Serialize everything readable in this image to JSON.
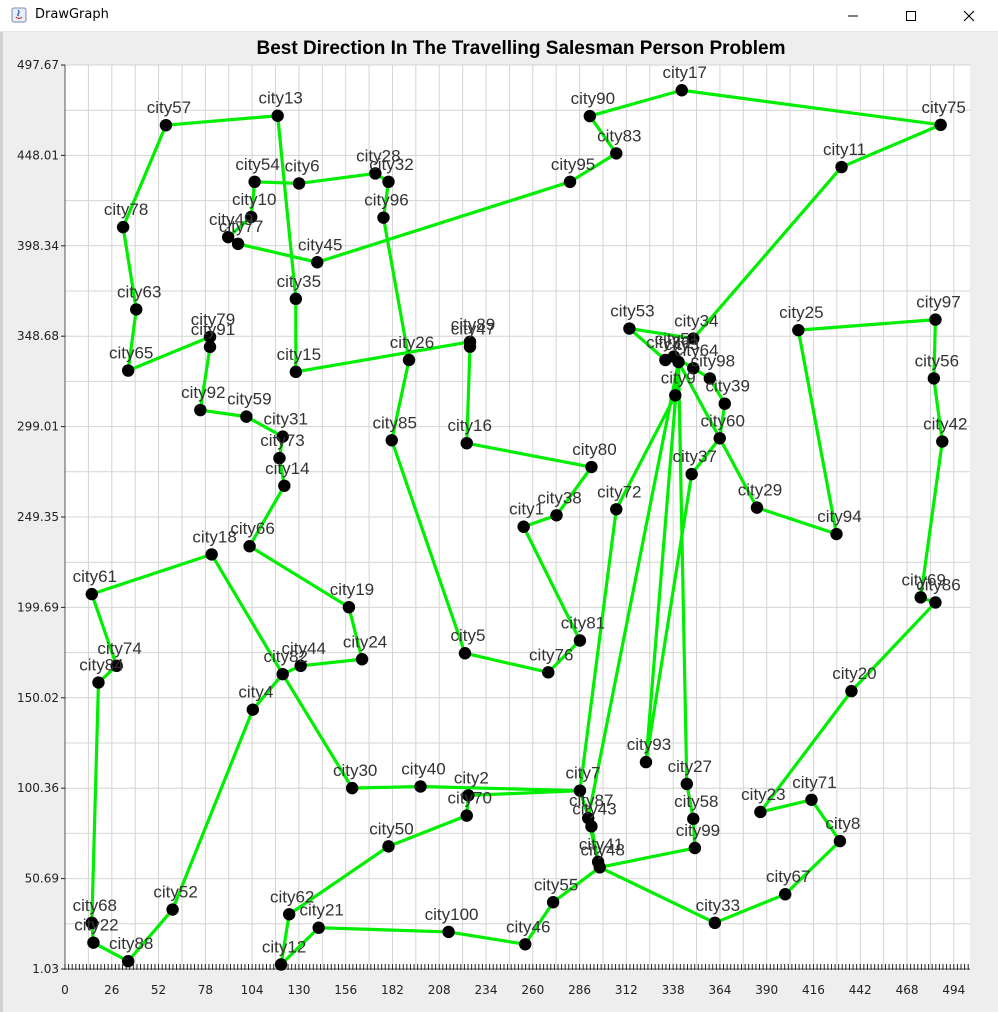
{
  "window": {
    "title": "DrawGraph",
    "icons": [
      "java-app-icon",
      "minimize-icon",
      "maximize-icon",
      "close-icon"
    ]
  },
  "colors": {
    "route": "#00ee00",
    "node": "#000000",
    "grid": "#d4d4d4",
    "label": "#333333"
  },
  "chart_data": {
    "type": "line",
    "title": "Best Direction In The Travelling Salesman Person Problem",
    "xlabel": "",
    "ylabel": "",
    "xlim": [
      0,
      503
    ],
    "ylim": [
      1.03,
      497.67
    ],
    "grid": true,
    "legend": "none",
    "x_ticks": [
      0,
      26,
      52,
      78,
      104,
      130,
      156,
      182,
      208,
      234,
      260,
      286,
      312,
      338,
      364,
      390,
      416,
      442,
      468,
      494
    ],
    "y_ticks": [
      "1.03",
      "50.69",
      "100.36",
      "150.02",
      "199.69",
      "249.35",
      "299.01",
      "348.68",
      "398.34",
      "448.01",
      "497.67"
    ],
    "cities": {
      "city1": [
        254.9,
        244.0
      ],
      "city2": [
        224.2,
        96.4
      ],
      "city3": [
        341.0,
        334.5
      ],
      "city4": [
        104.4,
        143.5
      ],
      "city5": [
        222.3,
        174.5
      ],
      "city6": [
        130.1,
        432.6
      ],
      "city7": [
        286.2,
        99.0
      ],
      "city8": [
        430.7,
        71.3
      ],
      "city9": [
        339.2,
        316.2
      ],
      "city10": [
        103.5,
        414.2
      ],
      "city11": [
        431.6,
        441.6
      ],
      "city12": [
        120.1,
        3.5
      ],
      "city13": [
        118.2,
        469.8
      ],
      "city14": [
        121.9,
        266.5
      ],
      "city15": [
        128.3,
        329.1
      ],
      "city16": [
        223.3,
        289.9
      ],
      "city17": [
        342.8,
        483.8
      ],
      "city18": [
        81.5,
        228.8
      ],
      "city19": [
        157.8,
        199.8
      ],
      "city20": [
        437.1,
        153.7
      ],
      "city21": [
        141.0,
        23.7
      ],
      "city22": [
        15.8,
        15.5
      ],
      "city23": [
        386.5,
        87.3
      ],
      "city24": [
        165.1,
        171.2
      ],
      "city25": [
        407.6,
        352.0
      ],
      "city26": [
        191.2,
        335.6
      ],
      "city27": [
        345.6,
        102.7
      ],
      "city28": [
        172.5,
        438.1
      ],
      "city29": [
        384.6,
        254.5
      ],
      "city30": [
        159.6,
        100.4
      ],
      "city31": [
        121.0,
        293.5
      ],
      "city32": [
        179.8,
        433.5
      ],
      "city33": [
        361.2,
        26.4
      ],
      "city34": [
        349.2,
        347.4
      ],
      "city35": [
        128.3,
        369.2
      ],
      "city36": [
        333.7,
        335.6
      ],
      "city37": [
        348.3,
        272.9
      ],
      "city38": [
        273.2,
        250.3
      ],
      "city39": [
        366.7,
        311.6
      ],
      "city40": [
        197.6,
        101.3
      ],
      "city41": [
        296.3,
        59.9
      ],
      "city42": [
        487.6,
        290.8
      ],
      "city43": [
        292.6,
        79.4
      ],
      "city44": [
        131.0,
        167.6
      ],
      "city45": [
        140.2,
        389.3
      ],
      "city46": [
        255.8,
        14.6
      ],
      "city47": [
        225.1,
        342.9
      ],
      "city48": [
        297.2,
        56.9
      ],
      "city49": [
        90.7,
        403.1
      ],
      "city50": [
        179.8,
        68.4
      ],
      "city51": [
        338.4,
        337.5
      ],
      "city52": [
        59.8,
        33.7
      ],
      "city53": [
        313.7,
        352.9
      ],
      "city54": [
        105.4,
        433.5
      ],
      "city55": [
        271.3,
        37.7
      ],
      "city56": [
        482.9,
        325.5
      ],
      "city57": [
        56.1,
        464.6
      ],
      "city58": [
        349.2,
        83.5
      ],
      "city59": [
        100.8,
        304.5
      ],
      "city60": [
        363.9,
        292.6
      ],
      "city61": [
        14.9,
        207.0
      ],
      "city62": [
        124.6,
        31.1
      ],
      "city63": [
        39.6,
        363.4
      ],
      "city64": [
        349.2,
        331.1
      ],
      "city65": [
        35.1,
        329.8
      ],
      "city66": [
        102.6,
        233.3
      ],
      "city67": [
        400.3,
        42.1
      ],
      "city68": [
        14.9,
        26.4
      ],
      "city69": [
        475.6,
        205.2
      ],
      "city70": [
        223.3,
        85.3
      ],
      "city71": [
        414.9,
        94.0
      ],
      "city72": [
        306.4,
        253.6
      ],
      "city73": [
        119.2,
        281.7
      ],
      "city74": [
        28.7,
        167.6
      ],
      "city75": [
        486.7,
        464.8
      ],
      "city76": [
        268.6,
        164.0
      ],
      "city77": [
        96.2,
        399.4
      ],
      "city78": [
        32.3,
        408.6
      ],
      "city79": [
        80.6,
        348.3
      ],
      "city80": [
        292.6,
        276.8
      ],
      "city81": [
        286.2,
        181.5
      ],
      "city82": [
        121.0,
        163.0
      ],
      "city83": [
        306.4,
        449.1
      ],
      "city84": [
        18.6,
        158.4
      ],
      "city85": [
        181.6,
        291.5
      ],
      "city86": [
        483.8,
        202.4
      ],
      "city87": [
        290.8,
        83.9
      ],
      "city88": [
        35.1,
        5.3
      ],
      "city89": [
        225.1,
        345.6
      ],
      "city90": [
        291.7,
        469.6
      ],
      "city91": [
        80.6,
        342.8
      ],
      "city92": [
        75.2,
        308.1
      ],
      "city93": [
        322.9,
        114.7
      ],
      "city94": [
        428.8,
        240.0
      ],
      "city95": [
        280.7,
        433.5
      ],
      "city96": [
        177.0,
        413.8
      ],
      "city97": [
        483.8,
        357.8
      ],
      "city98": [
        358.4,
        325.5
      ],
      "city99": [
        350.1,
        67.5
      ],
      "city100": [
        213.2,
        21.4
      ]
    },
    "route": [
      "city57",
      "city13",
      "city35",
      "city15",
      "city89",
      "city47",
      "city16",
      "city80",
      "city38",
      "city1",
      "city81",
      "city76",
      "city5",
      "city85",
      "city26",
      "city96",
      "city32",
      "city28",
      "city6",
      "city54",
      "city10",
      "city49",
      "city77",
      "city45",
      "city95",
      "city83",
      "city90",
      "city17",
      "city75",
      "city11",
      "city34",
      "city53",
      "city36",
      "city51",
      "city64",
      "city98",
      "city39",
      "city60",
      "city29",
      "city94",
      "city25",
      "city97",
      "city56",
      "city42",
      "city69",
      "city86",
      "city20",
      "city23",
      "city71",
      "city8",
      "city67",
      "city33",
      "city48",
      "city41",
      "city87",
      "city3",
      "city93",
      "city37",
      "city60",
      "city3",
      "city9",
      "city72",
      "city7",
      "city40",
      "city30",
      "city82",
      "city44",
      "city24",
      "city19",
      "city66",
      "city14",
      "city73",
      "city31",
      "city59",
      "city92",
      "city91",
      "city79",
      "city65",
      "city63",
      "city78",
      "city57"
    ],
    "extra_edges": [
      [
        "city3",
        "city27"
      ],
      [
        "city27",
        "city58"
      ],
      [
        "city58",
        "city99"
      ],
      [
        "city99",
        "city48"
      ],
      [
        "city48",
        "city55"
      ],
      [
        "city55",
        "city46"
      ],
      [
        "city46",
        "city100"
      ],
      [
        "city100",
        "city21"
      ],
      [
        "city21",
        "city12"
      ],
      [
        "city12",
        "city62"
      ],
      [
        "city62",
        "city50"
      ],
      [
        "city50",
        "city70"
      ],
      [
        "city70",
        "city2"
      ],
      [
        "city2",
        "city7"
      ],
      [
        "city7",
        "city43"
      ],
      [
        "city43",
        "city41"
      ],
      [
        "city82",
        "city18"
      ],
      [
        "city18",
        "city61"
      ],
      [
        "city61",
        "city74"
      ],
      [
        "city74",
        "city84"
      ],
      [
        "city84",
        "city68"
      ],
      [
        "city68",
        "city22"
      ],
      [
        "city22",
        "city88"
      ],
      [
        "city88",
        "city52"
      ],
      [
        "city52",
        "city4"
      ],
      [
        "city4",
        "city82"
      ]
    ]
  }
}
